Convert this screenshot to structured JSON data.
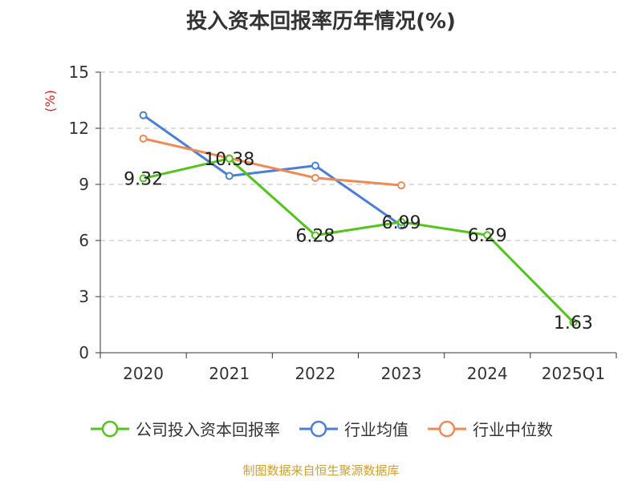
{
  "chart_data": {
    "type": "line",
    "title": "投入资本回报率历年情况(%)",
    "ylabel": "(%)",
    "xlabel": "",
    "categories": [
      "2020",
      "2021",
      "2022",
      "2023",
      "2024",
      "2025Q1"
    ],
    "ylim": [
      0,
      15
    ],
    "yticks": [
      0,
      3,
      6,
      9,
      12,
      15
    ],
    "grid": true,
    "legend_position": "bottom",
    "series": [
      {
        "name": "公司投入资本回报率",
        "color": "#52c41a",
        "values": [
          9.32,
          10.38,
          6.28,
          6.99,
          6.29,
          1.63
        ],
        "labels": [
          "9.32",
          "10.38",
          "6.28",
          "6.99",
          "6.29",
          "1.63"
        ]
      },
      {
        "name": "行业均值",
        "color": "#4a7fd9",
        "values": [
          12.7,
          9.45,
          10.0,
          6.8,
          null,
          null
        ]
      },
      {
        "name": "行业中位数",
        "color": "#f08a55",
        "values": [
          11.45,
          10.4,
          9.35,
          8.95,
          null,
          null
        ]
      }
    ]
  },
  "source": "制图数据来自恒生聚源数据库"
}
